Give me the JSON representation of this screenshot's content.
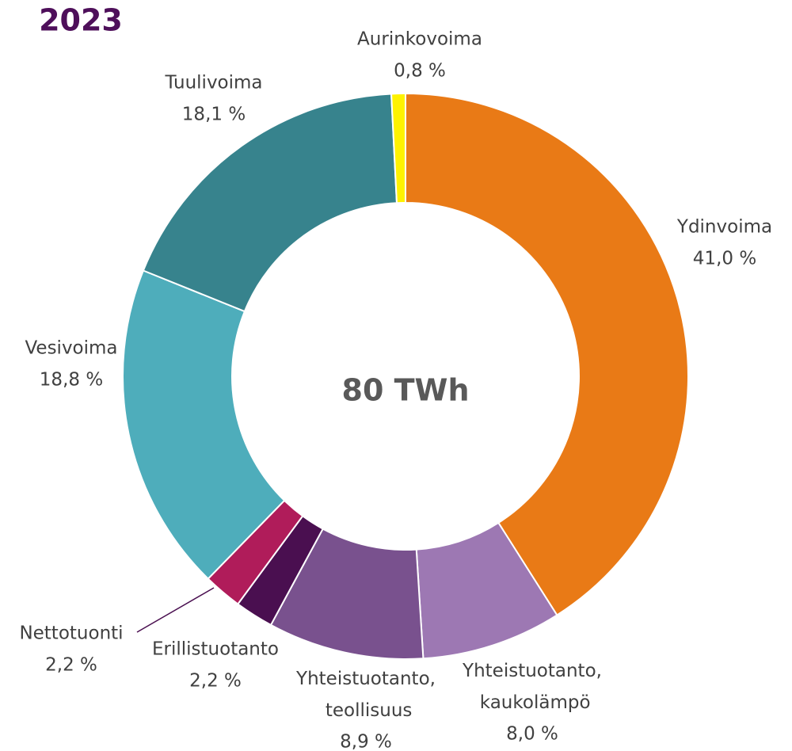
{
  "chart_data": {
    "type": "donut",
    "title": "2023",
    "center_label": "80 TWh",
    "categories": [
      "Ydinvoima",
      "Yhteistuotanto, kaukolämpö",
      "Yhteistuotanto, teollisuus",
      "Erillistuotanto",
      "Nettotuonti",
      "Vesivoima",
      "Tuulivoima",
      "Aurinkovoima"
    ],
    "values": [
      41.0,
      8.0,
      8.9,
      2.2,
      2.2,
      18.8,
      18.1,
      0.8
    ],
    "value_labels": [
      "41,0 %",
      "8,0 %",
      "8,9 %",
      "2,2 %",
      "2,2 %",
      "18,8 %",
      "18,1 %",
      "0,8 %"
    ],
    "colors": [
      "#e97a16",
      "#9d78b3",
      "#79518e",
      "#4a0f50",
      "#b01c5a",
      "#4eadbb",
      "#37838d",
      "#fef200"
    ]
  }
}
